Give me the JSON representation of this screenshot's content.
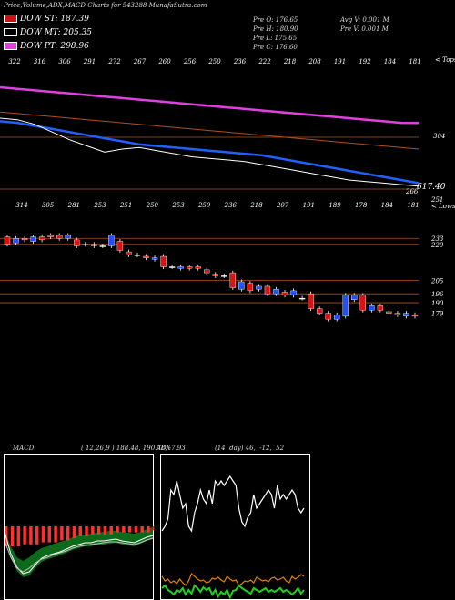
{
  "header": {
    "title": "Price,Volume,ADX,MACD Charts for 543288 MunafaSutra.com",
    "legend": [
      {
        "label": "DOW ST: 187.39",
        "color": "#d01010"
      },
      {
        "label": "DOW MT: 205.35",
        "color": "#000000"
      },
      {
        "label": "DOW PT: 298.96",
        "color": "#e040e0"
      }
    ],
    "ohlc": {
      "open": "Pre   O: 176.65",
      "high": "Pre   H: 180.90",
      "low": "Pre   L: 175.65",
      "close": "Pre   C: 176.60",
      "avg_vol": "Avg V: 0.001 M",
      "pre_vol": "Pre   V: 0.001 M"
    }
  },
  "chart_data": [
    {
      "type": "line",
      "name": "upper-ema-panel",
      "top_tick_labels": [
        "322",
        "316",
        "306",
        "291",
        "272",
        "267",
        "260",
        "256",
        "250",
        "236",
        "222",
        "218",
        "208",
        "191",
        "192",
        "184",
        "181"
      ],
      "right_labels": [
        "< Tops",
        "304",
        "617.40",
        "266"
      ],
      "series": [
        {
          "color": "#e040e0",
          "values": [
            322,
            321,
            320,
            319,
            318,
            317,
            316,
            315,
            314,
            313,
            312,
            311,
            310,
            309,
            308,
            307,
            306,
            305,
            304,
            303,
            302,
            301,
            300,
            299,
            298.96
          ]
        },
        {
          "color": "#b05020",
          "values": [
            306,
            305,
            304,
            303,
            302,
            301,
            300,
            299,
            298,
            297,
            296,
            295,
            294,
            293,
            292,
            291,
            290,
            289,
            288,
            287,
            286,
            285,
            284,
            283,
            282
          ]
        },
        {
          "color": "#2060ff",
          "values": [
            300,
            299,
            297,
            295,
            293,
            291,
            289,
            287,
            285,
            284,
            283,
            282,
            281,
            280,
            279,
            278,
            276,
            274,
            272,
            270,
            268,
            266,
            264,
            262,
            260
          ]
        },
        {
          "color": "#ffffff",
          "values": [
            302,
            301,
            298,
            293,
            288,
            284,
            280,
            282,
            283,
            281,
            279,
            277,
            276,
            275,
            274,
            272,
            270,
            268,
            266,
            264,
            262,
            261,
            260,
            259,
            258
          ]
        }
      ]
    },
    {
      "type": "candlestick",
      "name": "price-panel",
      "top_tick_labels": [
        "314",
        "305",
        "281",
        "253",
        "251",
        "250",
        "253",
        "250",
        "236",
        "218",
        "207",
        "191",
        "189",
        "178",
        "184",
        "181"
      ],
      "right_labels": [
        "251",
        "< Lows",
        "233",
        "229",
        "205",
        "196",
        "190",
        "179"
      ],
      "ylim": [
        170,
        255
      ],
      "candles": [
        {
          "o": 234,
          "c": 229
        },
        {
          "o": 230,
          "c": 233
        },
        {
          "o": 233,
          "c": 232
        },
        {
          "o": 231,
          "c": 234
        },
        {
          "o": 234,
          "c": 232
        },
        {
          "o": 235,
          "c": 234
        },
        {
          "o": 235,
          "c": 233
        },
        {
          "o": 233,
          "c": 235
        },
        {
          "o": 232,
          "c": 228
        },
        {
          "o": 229,
          "c": 229
        },
        {
          "o": 229,
          "c": 228
        },
        {
          "o": 228,
          "c": 228
        },
        {
          "o": 228,
          "c": 235
        },
        {
          "o": 231,
          "c": 225
        },
        {
          "o": 224,
          "c": 222
        },
        {
          "o": 222,
          "c": 222
        },
        {
          "o": 221,
          "c": 220
        },
        {
          "o": 219,
          "c": 220
        },
        {
          "o": 221,
          "c": 214
        },
        {
          "o": 214,
          "c": 214
        },
        {
          "o": 213,
          "c": 214
        },
        {
          "o": 214,
          "c": 213
        },
        {
          "o": 214,
          "c": 213
        },
        {
          "o": 212,
          "c": 210
        },
        {
          "o": 209,
          "c": 208
        },
        {
          "o": 208,
          "c": 208
        },
        {
          "o": 210,
          "c": 200
        },
        {
          "o": 199,
          "c": 204
        },
        {
          "o": 203,
          "c": 198
        },
        {
          "o": 199,
          "c": 201
        },
        {
          "o": 201,
          "c": 196
        },
        {
          "o": 196,
          "c": 199
        },
        {
          "o": 197,
          "c": 195
        },
        {
          "o": 195,
          "c": 198
        },
        {
          "o": 193,
          "c": 193
        },
        {
          "o": 196,
          "c": 186
        },
        {
          "o": 186,
          "c": 183
        },
        {
          "o": 183,
          "c": 179
        },
        {
          "o": 179,
          "c": 182
        },
        {
          "o": 181,
          "c": 195
        },
        {
          "o": 192,
          "c": 195
        },
        {
          "o": 195,
          "c": 185
        },
        {
          "o": 185,
          "c": 188
        },
        {
          "o": 188,
          "c": 185
        },
        {
          "o": 184,
          "c": 183
        },
        {
          "o": 183,
          "c": 182
        },
        {
          "o": 181,
          "c": 183
        },
        {
          "o": 182,
          "c": 181
        }
      ]
    },
    {
      "type": "area",
      "name": "macd-panel",
      "header_left": "MACD:",
      "header_mid": "( 12,26,9 ) 188.48, 190.78, -7.93",
      "histogram": [
        10,
        10,
        10,
        9,
        9,
        9,
        8,
        8,
        8,
        7,
        7,
        6,
        5,
        5,
        4,
        4,
        4,
        4,
        3,
        3,
        3,
        3,
        3,
        3,
        2
      ],
      "macd_line": [
        86,
        110,
        125,
        132,
        130,
        122,
        115,
        112,
        110,
        108,
        105,
        102,
        100,
        98,
        98,
        96,
        96,
        95,
        94,
        96,
        97,
        98,
        95,
        92,
        90
      ],
      "signal_line": [
        96,
        114,
        126,
        130,
        126,
        120,
        116,
        114,
        111,
        109,
        107,
        104,
        102,
        101,
        100,
        99,
        98,
        97,
        97,
        98,
        99,
        100,
        98,
        95,
        93
      ]
    },
    {
      "type": "line",
      "name": "adx-panel",
      "header_left": "ADX",
      "header_mid": "(14  day) 46,  -12,  52",
      "series": [
        {
          "color": "#ffffff",
          "values": [
            85,
            80,
            72,
            40,
            45,
            30,
            45,
            60,
            55,
            80,
            85,
            65,
            55,
            40,
            50,
            55,
            40,
            55,
            30,
            35,
            30,
            35,
            30,
            25,
            30,
            35,
            60,
            75,
            80,
            70,
            65,
            45,
            60,
            55,
            50,
            45,
            40,
            45,
            60,
            35,
            50,
            45,
            50,
            45,
            40,
            45,
            60,
            65,
            60
          ]
        },
        {
          "color": "#e08000",
          "values": [
            135,
            140,
            138,
            142,
            140,
            143,
            138,
            142,
            145,
            140,
            132,
            135,
            138,
            140,
            139,
            142,
            141,
            137,
            138,
            136,
            139,
            141,
            135,
            138,
            140,
            139,
            145,
            143,
            140,
            141,
            139,
            142,
            136,
            138,
            140,
            139,
            141,
            137,
            136,
            139,
            138,
            136,
            140,
            142,
            135,
            138,
            136,
            133,
            135
          ]
        },
        {
          "color": "#20d020",
          "values": [
            148,
            145,
            150,
            152,
            155,
            150,
            152,
            148,
            155,
            150,
            154,
            145,
            148,
            152,
            147,
            150,
            148,
            155,
            150,
            157,
            152,
            155,
            150,
            158,
            151,
            150,
            145,
            148,
            150,
            152,
            154,
            148,
            150,
            152,
            150,
            148,
            152,
            150,
            152,
            150,
            148,
            152,
            150,
            152,
            155,
            152,
            148,
            154,
            150
          ]
        }
      ]
    }
  ]
}
